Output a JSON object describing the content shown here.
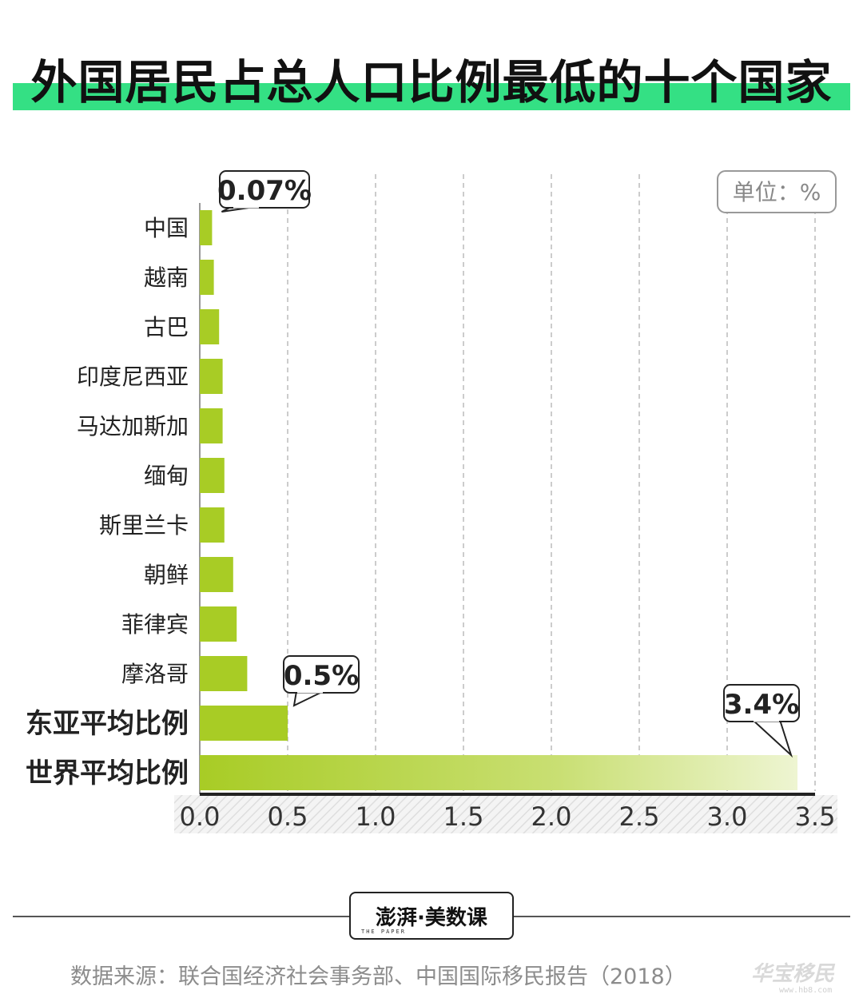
{
  "header": {
    "title": "外国居民占总人口比例最低的十个国家"
  },
  "unit_label": "单位：%",
  "colors": {
    "bar": "#a8cc25",
    "title_band": "#34e084",
    "grid": "#cccccc",
    "axis": "#222222"
  },
  "chart_data": {
    "type": "bar",
    "orientation": "horizontal",
    "title": "外国居民占总人口比例最低的十个国家",
    "categories": [
      "中国",
      "越南",
      "古巴",
      "印度尼西亚",
      "马达加斯加",
      "缅甸",
      "斯里兰卡",
      "朝鲜",
      "菲律宾",
      "摩洛哥",
      "东亚平均比例",
      "世界平均比例"
    ],
    "values": [
      0.07,
      0.08,
      0.11,
      0.13,
      0.13,
      0.14,
      0.14,
      0.19,
      0.21,
      0.27,
      0.5,
      3.4
    ],
    "bold_categories": [
      "东亚平均比例",
      "世界平均比例"
    ],
    "annotations": [
      {
        "category": "中国",
        "label": "0.07%"
      },
      {
        "category": "东亚平均比例",
        "label": "0.5%"
      },
      {
        "category": "世界平均比例",
        "label": "3.4%"
      }
    ],
    "xlim": [
      0,
      3.5
    ],
    "xticks": [
      "0.0",
      "0.5",
      "1.0",
      "1.5",
      "2.0",
      "2.5",
      "3.0",
      "3.5"
    ],
    "grid": "vertical dashed",
    "legend": "none"
  },
  "footer": {
    "brand": "澎湃·美数课",
    "brand_sub": "THE PAPER",
    "source": "数据来源：联合国经济社会事务部、中国国际移民报告（2018）",
    "watermark": "华宝移民",
    "watermark_url": "www.hb8.com"
  }
}
